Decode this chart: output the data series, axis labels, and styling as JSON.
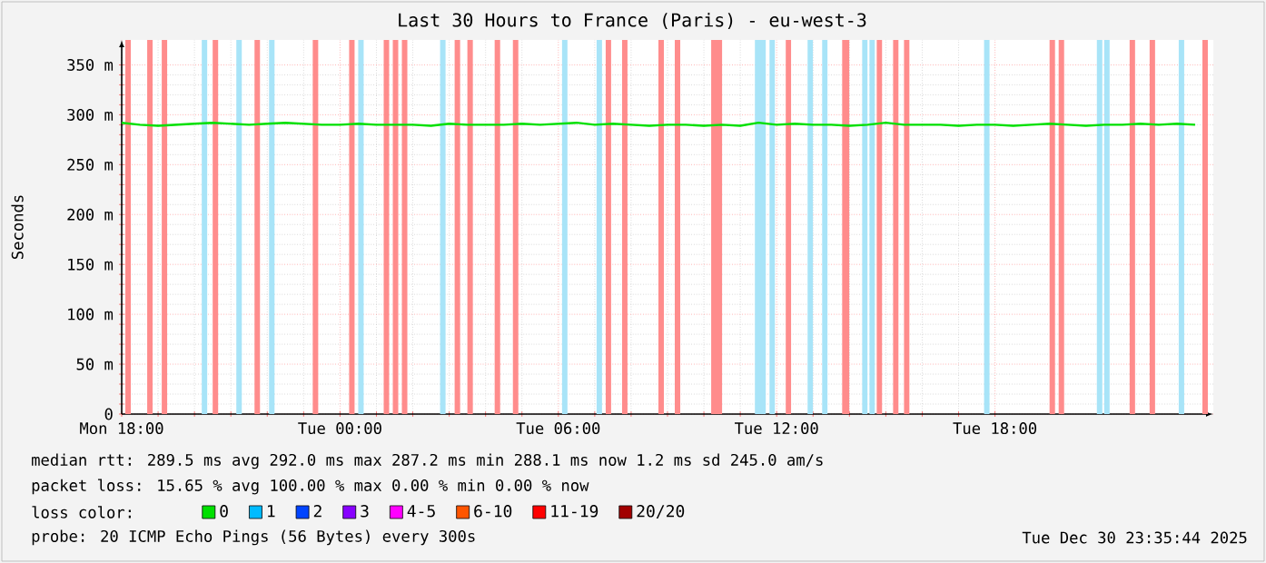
{
  "chart_data": {
    "type": "line",
    "title": "Last 30 Hours to France (Paris) - eu-west-3",
    "ylabel": "Seconds",
    "x": [
      "2025-12-29T18:00",
      "2025-12-29T18:30",
      "2025-12-29T19:00",
      "2025-12-29T19:30",
      "2025-12-29T20:00",
      "2025-12-29T20:30",
      "2025-12-29T21:00",
      "2025-12-29T21:30",
      "2025-12-29T22:00",
      "2025-12-29T22:30",
      "2025-12-29T23:00",
      "2025-12-29T23:30",
      "2025-12-30T00:00",
      "2025-12-30T00:30",
      "2025-12-30T01:00",
      "2025-12-30T01:30",
      "2025-12-30T02:00",
      "2025-12-30T02:30",
      "2025-12-30T03:00",
      "2025-12-30T03:30",
      "2025-12-30T04:00",
      "2025-12-30T04:30",
      "2025-12-30T05:00",
      "2025-12-30T05:30",
      "2025-12-30T06:00",
      "2025-12-30T06:30",
      "2025-12-30T07:00",
      "2025-12-30T07:30",
      "2025-12-30T08:00",
      "2025-12-30T08:30",
      "2025-12-30T09:00",
      "2025-12-30T09:30",
      "2025-12-30T10:00",
      "2025-12-30T10:30",
      "2025-12-30T11:00",
      "2025-12-30T11:30",
      "2025-12-30T12:00",
      "2025-12-30T12:30",
      "2025-12-30T13:00",
      "2025-12-30T13:30",
      "2025-12-30T14:00",
      "2025-12-30T14:30",
      "2025-12-30T15:00",
      "2025-12-30T15:30",
      "2025-12-30T16:00",
      "2025-12-30T16:30",
      "2025-12-30T17:00",
      "2025-12-30T17:30",
      "2025-12-30T18:00",
      "2025-12-30T18:30",
      "2025-12-30T19:00",
      "2025-12-30T19:30",
      "2025-12-30T20:00",
      "2025-12-30T20:30",
      "2025-12-30T21:00",
      "2025-12-30T21:30",
      "2025-12-30T22:00",
      "2025-12-30T22:30",
      "2025-12-30T23:00",
      "2025-12-30T23:30"
    ],
    "series": [
      {
        "name": "0",
        "color": "#00e000",
        "values": [
          292,
          290,
          289,
          290,
          291,
          292,
          291,
          290,
          291,
          292,
          291,
          290,
          290,
          291,
          290,
          290,
          290,
          289,
          291,
          290,
          290,
          290,
          291,
          290,
          291,
          292,
          290,
          291,
          290,
          289,
          290,
          290,
          289,
          290,
          289,
          292,
          290,
          291,
          290,
          290,
          289,
          290,
          292,
          290,
          290,
          290,
          289,
          290,
          290,
          289,
          290,
          291,
          290,
          289,
          290,
          290,
          291,
          290,
          291,
          290
        ]
      },
      {
        "name": "1",
        "color": "#00bbff",
        "values": [
          null,
          null,
          null,
          null,
          null,
          null,
          null,
          null,
          null,
          null,
          null,
          null,
          null,
          null,
          null,
          null,
          null,
          null,
          null,
          null,
          null,
          null,
          null,
          null,
          null,
          null,
          null,
          null,
          null,
          null,
          null,
          null,
          null,
          null,
          null,
          null,
          null,
          null,
          null,
          null,
          null,
          null,
          null,
          null,
          null,
          null,
          null,
          null,
          null,
          null,
          null,
          null,
          null,
          null,
          null,
          null,
          null,
          null,
          null,
          null
        ]
      },
      {
        "name": "2",
        "color": "#0044ff",
        "values": [
          null,
          null,
          null,
          null,
          null,
          null,
          null,
          null,
          null,
          null,
          null,
          null,
          null,
          null,
          null,
          null,
          null,
          null,
          null,
          null,
          null,
          null,
          null,
          null,
          null,
          null,
          null,
          null,
          null,
          null,
          null,
          null,
          null,
          null,
          null,
          null,
          null,
          null,
          null,
          null,
          null,
          null,
          null,
          null,
          null,
          null,
          null,
          null,
          null,
          null,
          null,
          null,
          null,
          null,
          null,
          null,
          null,
          null,
          null,
          null
        ]
      },
      {
        "name": "3",
        "color": "#8800ff",
        "values": [
          null,
          null,
          null,
          null,
          null,
          null,
          null,
          null,
          null,
          null,
          null,
          null,
          null,
          null,
          null,
          null,
          null,
          null,
          null,
          null,
          null,
          null,
          null,
          null,
          null,
          null,
          null,
          null,
          null,
          null,
          null,
          null,
          null,
          null,
          null,
          null,
          null,
          null,
          null,
          null,
          null,
          null,
          null,
          null,
          null,
          null,
          null,
          null,
          null,
          null,
          null,
          null,
          null,
          null,
          null,
          null,
          null,
          null,
          null,
          null
        ]
      },
      {
        "name": "4-5",
        "color": "#ff00ff",
        "values": [
          null,
          null,
          null,
          null,
          null,
          null,
          null,
          null,
          null,
          null,
          null,
          null,
          null,
          null,
          null,
          null,
          null,
          null,
          null,
          null,
          null,
          null,
          null,
          null,
          null,
          null,
          null,
          null,
          null,
          null,
          null,
          null,
          null,
          null,
          null,
          null,
          null,
          null,
          null,
          null,
          null,
          null,
          null,
          null,
          null,
          null,
          null,
          null,
          null,
          null,
          null,
          null,
          null,
          null,
          null,
          null,
          null,
          null,
          null,
          null
        ]
      },
      {
        "name": "6-10",
        "color": "#ff5500",
        "values": [
          null,
          null,
          null,
          null,
          null,
          null,
          null,
          null,
          null,
          null,
          null,
          null,
          null,
          null,
          null,
          null,
          null,
          null,
          null,
          null,
          null,
          null,
          null,
          null,
          null,
          null,
          null,
          null,
          null,
          null,
          null,
          null,
          null,
          null,
          null,
          null,
          null,
          null,
          null,
          null,
          null,
          null,
          null,
          null,
          null,
          null,
          null,
          null,
          null,
          null,
          null,
          null,
          null,
          null,
          null,
          null,
          null,
          null,
          null,
          null
        ]
      },
      {
        "name": "11-19",
        "color": "#ff0000",
        "values": [
          null,
          null,
          null,
          null,
          null,
          null,
          null,
          null,
          null,
          null,
          null,
          null,
          null,
          null,
          null,
          null,
          null,
          null,
          null,
          null,
          null,
          null,
          null,
          null,
          null,
          null,
          null,
          null,
          null,
          null,
          null,
          null,
          null,
          null,
          null,
          null,
          null,
          null,
          null,
          null,
          null,
          null,
          null,
          null,
          null,
          null,
          null,
          null,
          null,
          null,
          null,
          null,
          null,
          null,
          null,
          null,
          null,
          null,
          null,
          null
        ]
      },
      {
        "name": "20/20",
        "color": "#a10000",
        "values": [
          null,
          null,
          null,
          null,
          null,
          null,
          null,
          null,
          null,
          null,
          null,
          null,
          null,
          null,
          null,
          null,
          null,
          null,
          null,
          null,
          null,
          null,
          null,
          null,
          null,
          null,
          null,
          null,
          null,
          null,
          null,
          null,
          null,
          null,
          null,
          null,
          null,
          null,
          null,
          null,
          null,
          null,
          null,
          null,
          null,
          null,
          null,
          null,
          null,
          null,
          null,
          null,
          null,
          null,
          null,
          null,
          null,
          null,
          null,
          null
        ]
      }
    ],
    "legend": "bottom",
    "legend_title": "loss color:",
    "grid": true,
    "marker": "none",
    "line_style": "solid",
    "xlim": [
      "2025-12-29T18:00",
      "2025-12-31T00:00"
    ],
    "xticks": [
      {
        "value": "2025-12-29T18:00",
        "label": "Mon 18:00"
      },
      {
        "value": "2025-12-30T00:00",
        "label": "Tue 00:00"
      },
      {
        "value": "2025-12-30T06:00",
        "label": "Tue 06:00"
      },
      {
        "value": "2025-12-30T12:00",
        "label": "Tue 12:00"
      },
      {
        "value": "2025-12-30T18:00",
        "label": "Tue 18:00"
      }
    ],
    "ylim": [
      0,
      375
    ],
    "yticks": [
      0,
      {
        "value": 50,
        "label": "50 m"
      },
      {
        "value": 100,
        "label": "100 m"
      },
      {
        "value": 150,
        "label": "150 m"
      },
      {
        "value": 200,
        "label": "200 m"
      },
      {
        "value": 250,
        "label": "250 m"
      },
      {
        "value": 300,
        "label": "300 m"
      },
      {
        "value": 350,
        "label": "350 m"
      }
    ],
    "bands": [
      {
        "axis": "x",
        "from": "2025-12-29T18:06",
        "to": "2025-12-29T18:15",
        "color": "#ff8c8c"
      },
      {
        "axis": "x",
        "from": "2025-12-29T18:42",
        "to": "2025-12-29T18:51",
        "color": "#ff8c8c"
      },
      {
        "axis": "x",
        "from": "2025-12-29T19:06",
        "to": "2025-12-29T19:15",
        "color": "#ff8c8c"
      },
      {
        "axis": "x",
        "from": "2025-12-29T20:12",
        "to": "2025-12-29T20:21",
        "color": "#a8e4f8"
      },
      {
        "axis": "x",
        "from": "2025-12-29T20:30",
        "to": "2025-12-29T20:39",
        "color": "#ff8c8c"
      },
      {
        "axis": "x",
        "from": "2025-12-29T21:09",
        "to": "2025-12-29T21:18",
        "color": "#a8e4f8"
      },
      {
        "axis": "x",
        "from": "2025-12-29T21:39",
        "to": "2025-12-29T21:48",
        "color": "#ff8c8c"
      },
      {
        "axis": "x",
        "from": "2025-12-29T22:03",
        "to": "2025-12-29T22:12",
        "color": "#a8e4f8"
      },
      {
        "axis": "x",
        "from": "2025-12-29T23:15",
        "to": "2025-12-29T23:24",
        "color": "#ff8c8c"
      },
      {
        "axis": "x",
        "from": "2025-12-30T00:15",
        "to": "2025-12-30T00:24",
        "color": "#ff8c8c"
      },
      {
        "axis": "x",
        "from": "2025-12-30T00:30",
        "to": "2025-12-30T00:39",
        "color": "#a8e4f8"
      },
      {
        "axis": "x",
        "from": "2025-12-30T01:12",
        "to": "2025-12-30T01:21",
        "color": "#ff8c8c"
      },
      {
        "axis": "x",
        "from": "2025-12-30T01:27",
        "to": "2025-12-30T01:36",
        "color": "#ff8c8c"
      },
      {
        "axis": "x",
        "from": "2025-12-30T01:42",
        "to": "2025-12-30T01:51",
        "color": "#ff8c8c"
      },
      {
        "axis": "x",
        "from": "2025-12-30T02:45",
        "to": "2025-12-30T02:54",
        "color": "#a8e4f8"
      },
      {
        "axis": "x",
        "from": "2025-12-30T03:09",
        "to": "2025-12-30T03:18",
        "color": "#ff8c8c"
      },
      {
        "axis": "x",
        "from": "2025-12-30T03:30",
        "to": "2025-12-30T03:39",
        "color": "#ff8c8c"
      },
      {
        "axis": "x",
        "from": "2025-12-30T04:15",
        "to": "2025-12-30T04:24",
        "color": "#ff8c8c"
      },
      {
        "axis": "x",
        "from": "2025-12-30T04:45",
        "to": "2025-12-30T04:54",
        "color": "#ff8c8c"
      },
      {
        "axis": "x",
        "from": "2025-12-30T06:06",
        "to": "2025-12-30T06:15",
        "color": "#a8e4f8"
      },
      {
        "axis": "x",
        "from": "2025-12-30T07:03",
        "to": "2025-12-30T07:12",
        "color": "#a8e4f8"
      },
      {
        "axis": "x",
        "from": "2025-12-30T07:18",
        "to": "2025-12-30T07:27",
        "color": "#ff8c8c"
      },
      {
        "axis": "x",
        "from": "2025-12-30T07:45",
        "to": "2025-12-30T07:54",
        "color": "#ff8c8c"
      },
      {
        "axis": "x",
        "from": "2025-12-30T08:45",
        "to": "2025-12-30T08:54",
        "color": "#ff8c8c"
      },
      {
        "axis": "x",
        "from": "2025-12-30T09:12",
        "to": "2025-12-30T09:21",
        "color": "#ff8c8c"
      },
      {
        "axis": "x",
        "from": "2025-12-30T10:12",
        "to": "2025-12-30T10:30",
        "color": "#ff8c8c"
      },
      {
        "axis": "x",
        "from": "2025-12-30T11:24",
        "to": "2025-12-30T11:42",
        "color": "#a8e4f8"
      },
      {
        "axis": "x",
        "from": "2025-12-30T11:48",
        "to": "2025-12-30T11:57",
        "color": "#a8e4f8"
      },
      {
        "axis": "x",
        "from": "2025-12-30T12:15",
        "to": "2025-12-30T12:24",
        "color": "#ff8c8c"
      },
      {
        "axis": "x",
        "from": "2025-12-30T12:51",
        "to": "2025-12-30T13:00",
        "color": "#a8e4f8"
      },
      {
        "axis": "x",
        "from": "2025-12-30T13:15",
        "to": "2025-12-30T13:24",
        "color": "#a8e4f8"
      },
      {
        "axis": "x",
        "from": "2025-12-30T13:48",
        "to": "2025-12-30T14:00",
        "color": "#ff8c8c"
      },
      {
        "axis": "x",
        "from": "2025-12-30T14:21",
        "to": "2025-12-30T14:30",
        "color": "#a8e4f8"
      },
      {
        "axis": "x",
        "from": "2025-12-30T14:33",
        "to": "2025-12-30T14:42",
        "color": "#a8e4f8"
      },
      {
        "axis": "x",
        "from": "2025-12-30T14:45",
        "to": "2025-12-30T14:54",
        "color": "#ff8c8c"
      },
      {
        "axis": "x",
        "from": "2025-12-30T15:12",
        "to": "2025-12-30T15:21",
        "color": "#ff8c8c"
      },
      {
        "axis": "x",
        "from": "2025-12-30T15:30",
        "to": "2025-12-30T15:39",
        "color": "#ff8c8c"
      },
      {
        "axis": "x",
        "from": "2025-12-30T17:42",
        "to": "2025-12-30T17:51",
        "color": "#a8e4f8"
      },
      {
        "axis": "x",
        "from": "2025-12-30T19:30",
        "to": "2025-12-30T19:39",
        "color": "#ff8c8c"
      },
      {
        "axis": "x",
        "from": "2025-12-30T19:45",
        "to": "2025-12-30T19:54",
        "color": "#ff8c8c"
      },
      {
        "axis": "x",
        "from": "2025-12-30T20:48",
        "to": "2025-12-30T20:57",
        "color": "#a8e4f8"
      },
      {
        "axis": "x",
        "from": "2025-12-30T21:00",
        "to": "2025-12-30T21:09",
        "color": "#a8e4f8"
      },
      {
        "axis": "x",
        "from": "2025-12-30T21:42",
        "to": "2025-12-30T21:51",
        "color": "#ff8c8c"
      },
      {
        "axis": "x",
        "from": "2025-12-30T22:15",
        "to": "2025-12-30T22:24",
        "color": "#ff8c8c"
      },
      {
        "axis": "x",
        "from": "2025-12-30T23:03",
        "to": "2025-12-30T23:12",
        "color": "#a8e4f8"
      },
      {
        "axis": "x",
        "from": "2025-12-30T23:42",
        "to": "2025-12-30T23:51",
        "color": "#ff8c8c"
      }
    ],
    "annotations": [
      "median rtt:  289.5 ms avg  292.0 ms max  287.2 ms min  288.1 ms now  1.2 ms sd  245.0   am/s",
      "packet loss: 15.65 % avg  100.00 % max  0.00 % min  0.00 % now",
      "probe:       20 ICMP Echo Pings (56 Bytes) every 300s",
      "Tue Dec 30 23:35:44 2025"
    ]
  }
}
